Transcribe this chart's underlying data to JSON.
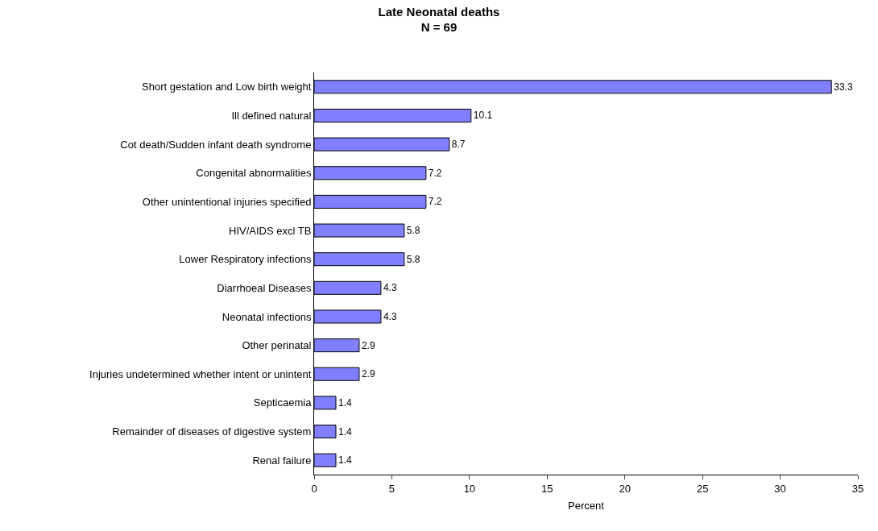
{
  "chart_data": {
    "type": "bar",
    "orientation": "horizontal",
    "title": "Late Neonatal deaths",
    "subtitle": "N = 69",
    "xlabel": "Percent",
    "categories": [
      "Short gestation and Low birth weight",
      "Ill defined natural",
      "Cot death/Sudden infant death syndrome",
      "Congenital abnormalities",
      "Other unintentional injuries specified",
      "HIV/AIDS excl TB",
      "Lower Respiratory infections",
      "Diarrhoeal Diseases",
      "Neonatal infections",
      "Other perinatal",
      "Injuries undetermined whether intent or unintent",
      "Septicaemia",
      "Remainder of diseases of digestive system",
      "Renal failure"
    ],
    "values": [
      33.3,
      10.1,
      8.7,
      7.2,
      7.2,
      5.8,
      5.8,
      4.3,
      4.3,
      2.9,
      2.9,
      1.4,
      1.4,
      1.4
    ],
    "color": "#8080ff",
    "xlim": [
      0,
      35
    ],
    "xticks": [
      0,
      5,
      10,
      15,
      20,
      25,
      30,
      35
    ],
    "data_labels": true,
    "grid": false,
    "legend": false
  }
}
